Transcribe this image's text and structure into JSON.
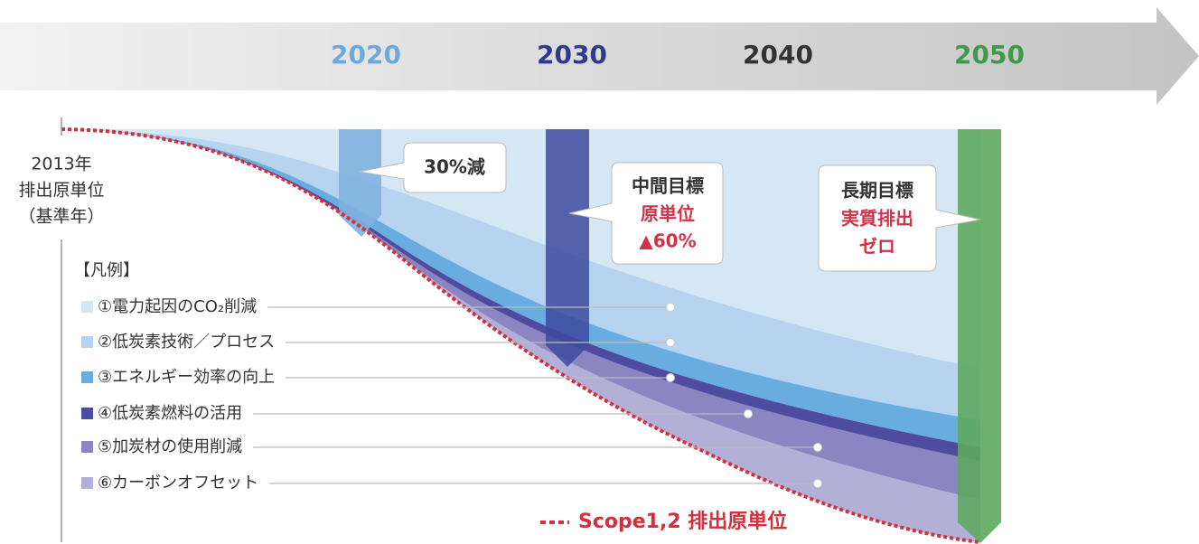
{
  "timeline": {
    "years": [
      "2020",
      "2030",
      "2040",
      "2050"
    ]
  },
  "baseline": {
    "lines": [
      "2013年",
      "排出原単位",
      "（基準年）"
    ]
  },
  "callouts": [
    {
      "lines": [
        "30%減"
      ]
    },
    {
      "lines": [
        "中間目標",
        "原単位",
        "▲60%"
      ]
    },
    {
      "lines": [
        "長期目標",
        "実質排出",
        "ゼロ"
      ]
    }
  ],
  "legend": {
    "title": "【凡例】",
    "items": [
      "①電力起因のCO₂削減",
      "②低炭素技術／プロセス",
      "③エネルギー効率の向上",
      "④低炭素燃料の活用",
      "⑤加炭材の使用削減",
      "⑥カーボンオフセット"
    ]
  },
  "scope_label": "Scope1,2 排出原単位"
}
